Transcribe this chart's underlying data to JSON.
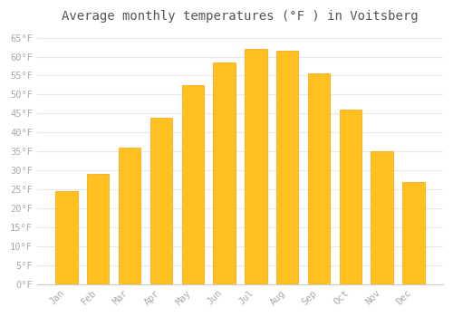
{
  "title": "Average monthly temperatures (°F ) in Voitsberg",
  "months": [
    "Jan",
    "Feb",
    "Mar",
    "Apr",
    "May",
    "Jun",
    "Jul",
    "Aug",
    "Sep",
    "Oct",
    "Nov",
    "Dec"
  ],
  "values": [
    24.5,
    29.0,
    36.0,
    44.0,
    52.5,
    58.5,
    62.0,
    61.5,
    55.5,
    46.0,
    35.0,
    27.0
  ],
  "bar_color": "#FFC020",
  "bar_edge_color": "#FFA000",
  "background_color": "#FFFFFF",
  "grid_color": "#E8E8E8",
  "tick_label_color": "#AAAAAA",
  "title_color": "#555555",
  "ylim": [
    0,
    67
  ],
  "yticks": [
    0,
    5,
    10,
    15,
    20,
    25,
    30,
    35,
    40,
    45,
    50,
    55,
    60,
    65
  ],
  "title_fontsize": 10,
  "tick_fontsize": 7.5,
  "bar_width": 0.7
}
